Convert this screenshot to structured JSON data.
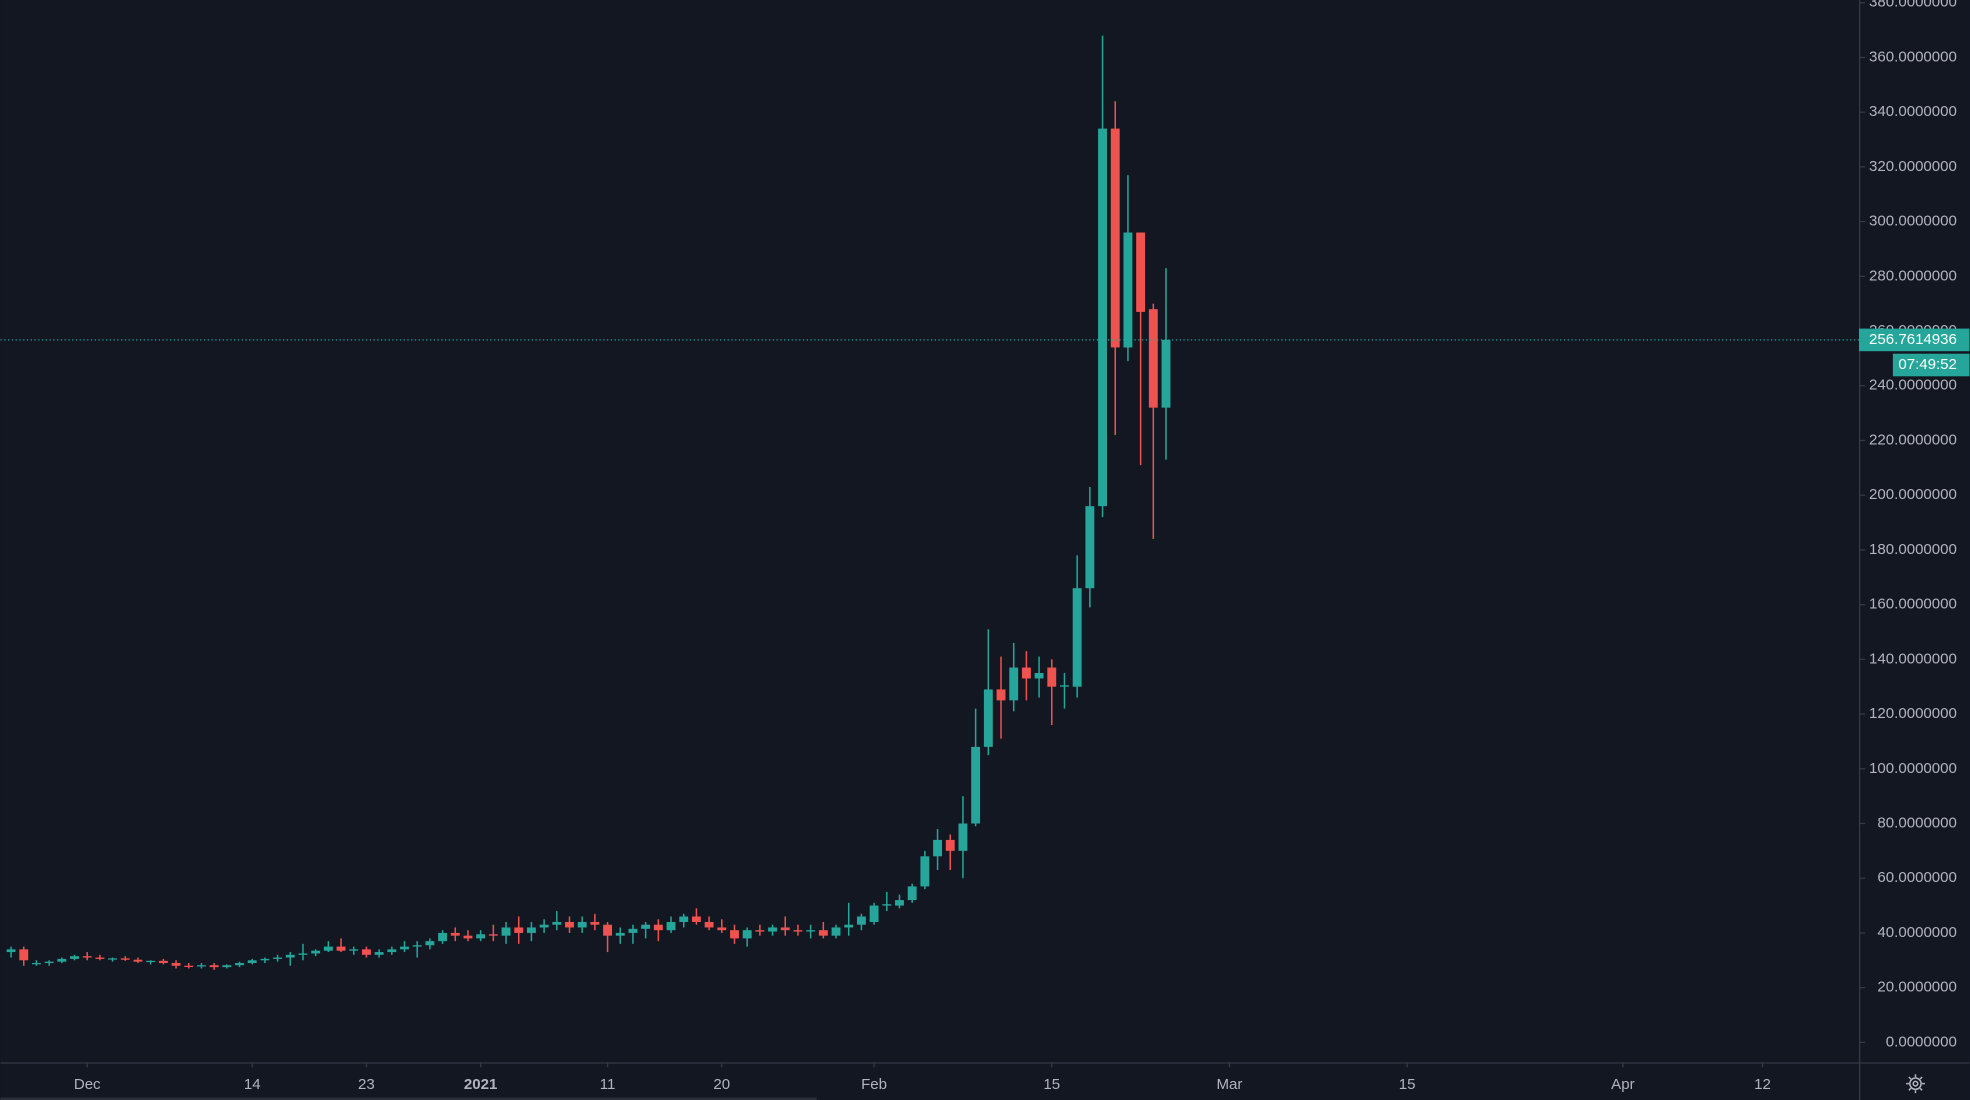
{
  "chart_data": {
    "type": "candlestick",
    "x": [
      0,
      1,
      2,
      3,
      4,
      5,
      6,
      7,
      8,
      9,
      10,
      11,
      12,
      13,
      14,
      15,
      16,
      17,
      18,
      19,
      20,
      21,
      22,
      23,
      24,
      25,
      26,
      27,
      28,
      29,
      30,
      31,
      32,
      33,
      34,
      35,
      36,
      37,
      38,
      39,
      40,
      41,
      42,
      43,
      44,
      45,
      46,
      47,
      48,
      49,
      50,
      51,
      52,
      53,
      54,
      55,
      56,
      57,
      58,
      59,
      60,
      61,
      62,
      63,
      64,
      65,
      66,
      67,
      68,
      69,
      70,
      71,
      72,
      73,
      74,
      75,
      76,
      77,
      78,
      79,
      80,
      81,
      82,
      83,
      84,
      85,
      86,
      87,
      88,
      89,
      90,
      91
    ],
    "open": [
      33,
      34,
      29,
      29,
      29.5,
      30.5,
      31.5,
      31,
      30.5,
      30.7,
      30.2,
      29.5,
      29.8,
      29,
      28,
      27.8,
      28.2,
      27.5,
      28.2,
      29,
      30,
      30.5,
      31,
      32,
      32.5,
      33.5,
      35,
      33.5,
      34,
      32,
      33,
      34,
      35,
      35.5,
      37,
      40,
      39,
      38,
      39.5,
      39,
      42,
      40,
      42,
      43,
      44,
      42,
      44,
      43,
      39,
      40,
      41.5,
      43,
      41,
      44,
      46,
      44,
      42,
      41,
      38,
      41,
      40.5,
      42,
      41,
      40.5,
      41,
      39,
      42,
      43,
      44,
      50,
      50,
      52,
      57,
      68,
      74,
      70,
      80,
      108,
      129,
      125,
      137,
      133,
      137,
      130,
      130,
      166,
      196,
      334,
      254,
      296,
      268,
      232
    ],
    "high": [
      35,
      35,
      30,
      30,
      31,
      32,
      33,
      32,
      31,
      31.5,
      31,
      30,
      30.5,
      30,
      29,
      29,
      29,
      28.5,
      29.5,
      30.5,
      31,
      32,
      33,
      36,
      34,
      37,
      38,
      35,
      35,
      34,
      35,
      37,
      37,
      38,
      41,
      42,
      41,
      41,
      43,
      44,
      46,
      44,
      45,
      48,
      46,
      46,
      47,
      44,
      42,
      43,
      44,
      45,
      46,
      47,
      49,
      46,
      45,
      43,
      42,
      43,
      43,
      46,
      43,
      43,
      44,
      43,
      51,
      47,
      51,
      55,
      54,
      58,
      70,
      78,
      76,
      90,
      122,
      151,
      141,
      146,
      143,
      141,
      140,
      135,
      178,
      203,
      368,
      344,
      317,
      296,
      270,
      283
    ],
    "low": [
      31,
      28,
      28,
      28,
      29,
      30,
      30,
      30,
      29.5,
      29.8,
      29,
      28.5,
      28.5,
      27,
      27,
      27,
      26.5,
      27,
      27.5,
      28.5,
      29,
      29.5,
      28,
      30,
      31.5,
      33,
      33,
      32,
      31,
      31,
      32,
      33,
      31,
      34,
      36,
      37,
      37,
      37,
      37,
      36,
      36,
      37,
      40,
      41,
      40,
      40,
      41,
      33,
      36,
      36,
      38,
      37,
      40,
      42,
      43,
      41,
      40,
      36,
      35,
      39,
      39,
      39,
      39,
      38,
      38,
      38,
      39,
      41,
      43,
      48,
      49,
      51,
      56,
      63,
      63,
      60,
      79,
      105,
      111,
      121,
      125,
      126,
      116,
      122,
      126,
      159,
      192,
      222,
      249,
      211,
      184,
      213
    ],
    "close": [
      34,
      30,
      29,
      29.5,
      30.5,
      31.5,
      31,
      30.5,
      30.7,
      30.2,
      29.5,
      29.8,
      29,
      28,
      27.8,
      28.2,
      27.5,
      28.2,
      29,
      30,
      30.5,
      31,
      32,
      32.5,
      33.5,
      35,
      33.5,
      34,
      32,
      33,
      34,
      35,
      35.5,
      37,
      40,
      39,
      38,
      39.5,
      39,
      42,
      40,
      42,
      43,
      44,
      42,
      44,
      43,
      39,
      40,
      41.5,
      43,
      41,
      44,
      46,
      44,
      42,
      41,
      38,
      41,
      40.5,
      42,
      41,
      40.5,
      41,
      39,
      42,
      43,
      46,
      50,
      50.5,
      52,
      57,
      68,
      74,
      70,
      80,
      108,
      129,
      125,
      137,
      133,
      135,
      130,
      130.5,
      166,
      196,
      334,
      254,
      296,
      267,
      232,
      256.7614936
    ],
    "up_color": "#26a69a",
    "down_color": "#ef5350",
    "xlim": [
      -0.83,
      145.6
    ],
    "xticks": [
      {
        "value": 6,
        "label": "Dec"
      },
      {
        "value": 19,
        "label": "14"
      },
      {
        "value": 28,
        "label": "23"
      },
      {
        "value": 37,
        "label": "2021"
      },
      {
        "value": 47,
        "label": "11"
      },
      {
        "value": 56,
        "label": "20"
      },
      {
        "value": 68,
        "label": "Feb"
      },
      {
        "value": 82,
        "label": "15"
      },
      {
        "value": 96,
        "label": "Mar"
      },
      {
        "value": 110,
        "label": "15"
      },
      {
        "value": 127,
        "label": "Apr"
      },
      {
        "value": 138,
        "label": "12"
      }
    ],
    "ylim": [
      -7.3,
      381
    ],
    "yticks": [
      {
        "value": 0,
        "label": "0.0000000"
      },
      {
        "value": 20,
        "label": "20.0000000"
      },
      {
        "value": 40,
        "label": "40.0000000"
      },
      {
        "value": 60,
        "label": "60.0000000"
      },
      {
        "value": 80,
        "label": "80.0000000"
      },
      {
        "value": 100,
        "label": "100.0000000"
      },
      {
        "value": 120,
        "label": "120.0000000"
      },
      {
        "value": 140,
        "label": "140.0000000"
      },
      {
        "value": 160,
        "label": "160.0000000"
      },
      {
        "value": 180,
        "label": "180.0000000"
      },
      {
        "value": 200,
        "label": "200.0000000"
      },
      {
        "value": 220,
        "label": "220.0000000"
      },
      {
        "value": 240,
        "label": "240.0000000"
      },
      {
        "value": 260,
        "label": "260.0000000"
      },
      {
        "value": 280,
        "label": "280.0000000"
      },
      {
        "value": 300,
        "label": "300.0000000"
      },
      {
        "value": 320,
        "label": "320.0000000"
      },
      {
        "value": 340,
        "label": "340.0000000"
      },
      {
        "value": 360,
        "label": "360.0000000"
      },
      {
        "value": 380,
        "label": "380.0000000"
      }
    ],
    "countdown": "07:49:52"
  }
}
